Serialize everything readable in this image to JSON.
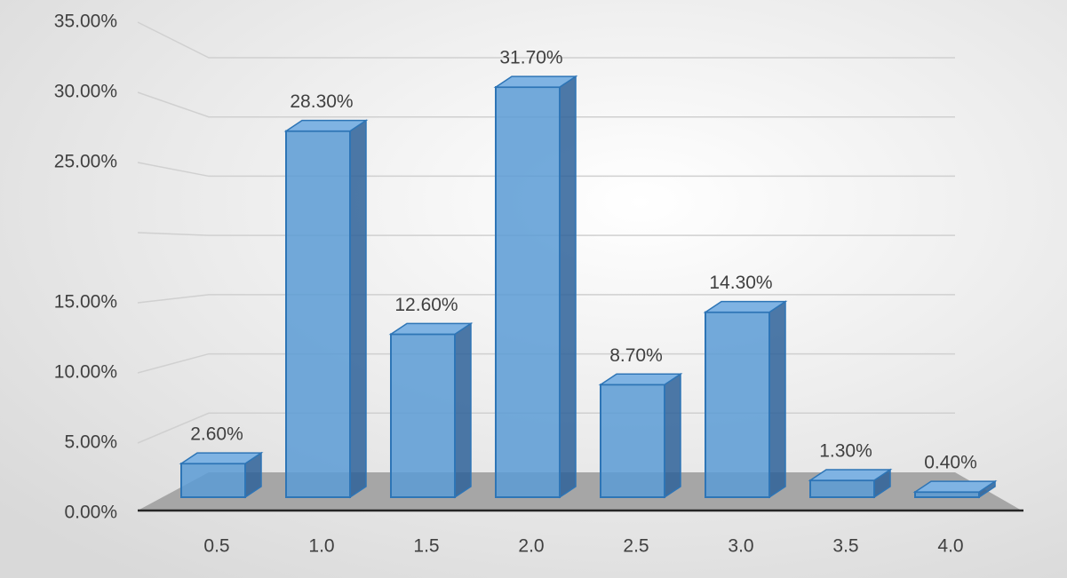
{
  "chart_data": {
    "type": "bar3d",
    "categories": [
      "0.5",
      "1.0",
      "1.5",
      "2.0",
      "2.5",
      "3.0",
      "3.5",
      "4.0"
    ],
    "values": [
      2.6,
      28.3,
      12.6,
      31.7,
      8.7,
      14.3,
      1.3,
      0.4
    ],
    "value_labels": [
      "2.60%",
      "28.30%",
      "12.60%",
      "31.70%",
      "8.70%",
      "14.30%",
      "1.30%",
      "0.40%"
    ],
    "color": "#5b9bd5",
    "ylim": [
      0,
      35
    ],
    "yticks": [
      {
        "value": 0,
        "label": "0.00%"
      },
      {
        "value": 5,
        "label": "5.00%"
      },
      {
        "value": 10,
        "label": "10.00%"
      },
      {
        "value": 15,
        "label": "15.00%"
      },
      {
        "value": 20,
        "label": null
      },
      {
        "value": 25,
        "label": "25.00%"
      },
      {
        "value": 30,
        "label": "30.00%"
      },
      {
        "value": 35,
        "label": "35.00%"
      }
    ],
    "grid": true
  }
}
